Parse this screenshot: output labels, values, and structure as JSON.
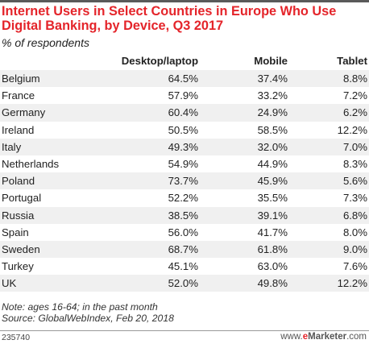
{
  "chart_data": {
    "type": "table",
    "title": "Internet Users in Select Countries in Europe Who Use Digital Banking, by Device, Q3 2017",
    "subtitle": "% of respondents",
    "columns": [
      "Desktop/laptop",
      "Mobile",
      "Tablet"
    ],
    "rows": [
      {
        "country": "Belgium",
        "desktop": "64.5%",
        "mobile": "37.4%",
        "tablet": "8.8%"
      },
      {
        "country": "France",
        "desktop": "57.9%",
        "mobile": "33.2%",
        "tablet": "7.2%"
      },
      {
        "country": "Germany",
        "desktop": "60.4%",
        "mobile": "24.9%",
        "tablet": "6.2%"
      },
      {
        "country": "Ireland",
        "desktop": "50.5%",
        "mobile": "58.5%",
        "tablet": "12.2%"
      },
      {
        "country": "Italy",
        "desktop": "49.3%",
        "mobile": "32.0%",
        "tablet": "7.0%"
      },
      {
        "country": "Netherlands",
        "desktop": "54.9%",
        "mobile": "44.9%",
        "tablet": "8.3%"
      },
      {
        "country": "Poland",
        "desktop": "73.7%",
        "mobile": "45.9%",
        "tablet": "5.6%"
      },
      {
        "country": "Portugal",
        "desktop": "52.2%",
        "mobile": "35.5%",
        "tablet": "7.3%"
      },
      {
        "country": "Russia",
        "desktop": "38.5%",
        "mobile": "39.1%",
        "tablet": "6.8%"
      },
      {
        "country": "Spain",
        "desktop": "56.0%",
        "mobile": "41.7%",
        "tablet": "8.0%"
      },
      {
        "country": "Sweden",
        "desktop": "68.7%",
        "mobile": "61.8%",
        "tablet": "9.0%"
      },
      {
        "country": "Turkey",
        "desktop": "45.1%",
        "mobile": "63.0%",
        "tablet": "7.6%"
      },
      {
        "country": "UK",
        "desktop": "52.0%",
        "mobile": "49.8%",
        "tablet": "12.2%"
      }
    ]
  },
  "notes": {
    "note": "Note: ages 16-64; in the past month",
    "source": "Source: GlobalWebIndex, Feb 20, 2018"
  },
  "footer": {
    "chart_id": "235740",
    "brand_prefix": "www.",
    "brand_e": "e",
    "brand_rest": "Marketer",
    "brand_suffix": ".com"
  },
  "colors": {
    "title": "#e4242a",
    "row_shade": "#f0f0f0",
    "top_rule": "#5a5a5a"
  }
}
